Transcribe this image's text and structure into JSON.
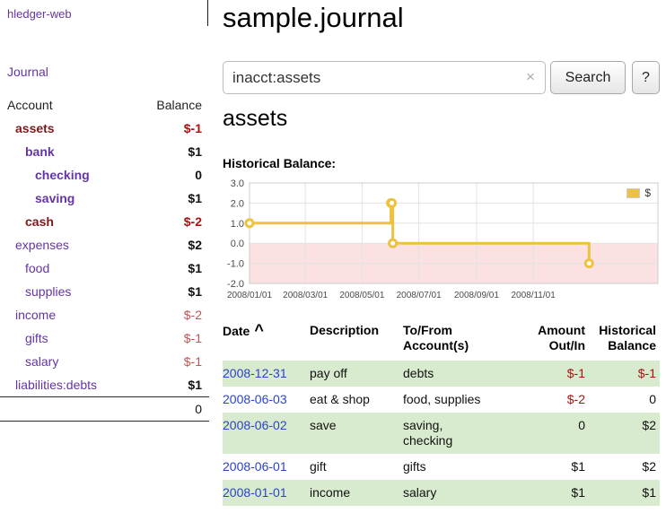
{
  "colors": {
    "purple": "#6434a8",
    "maroon": "#7a1a1a",
    "red": "#aa1111",
    "red-soft": "#bb5555",
    "blue": "#2b43c8",
    "row-green": "#d9ebce",
    "series-yellow": "#edc240",
    "negative-region": "#fbe1e1"
  },
  "sidebar": {
    "brand": "hledger-web",
    "journal_link": "Journal",
    "accounts": {
      "header": {
        "account": "Account",
        "balance": "Balance"
      },
      "rows": [
        {
          "name": "assets",
          "balance": "$-1"
        },
        {
          "name": "bank",
          "balance": "$1"
        },
        {
          "name": "checking",
          "balance": "0"
        },
        {
          "name": "saving",
          "balance": "$1"
        },
        {
          "name": "cash",
          "balance": "$-2"
        },
        {
          "name": "expenses",
          "balance": "$2"
        },
        {
          "name": "food",
          "balance": "$1"
        },
        {
          "name": "supplies",
          "balance": "$1"
        },
        {
          "name": "income",
          "balance": "$-2"
        },
        {
          "name": "gifts",
          "balance": "$-1"
        },
        {
          "name": "salary",
          "balance": "$-1"
        },
        {
          "name": "liabilities:debts",
          "balance": "$1"
        }
      ],
      "total": "0"
    }
  },
  "main": {
    "title": "sample.journal",
    "search": {
      "value": "inacct:assets",
      "clear_icon": "×",
      "search_button": "Search",
      "help_button": "?"
    },
    "account_heading": "assets",
    "chart_heading": "Historical Balance:"
  },
  "chart_data": {
    "type": "line",
    "step": true,
    "title": "Historical Balance:",
    "legend": {
      "label": "$",
      "position": "top-right"
    },
    "grid": true,
    "x_domain": [
      "2008-01-01",
      "2009-03-15"
    ],
    "y_domain": [
      -2,
      3
    ],
    "y_ticks": [
      3.0,
      2.0,
      1.0,
      0.0,
      -1.0,
      -2.0
    ],
    "x_ticks": [
      {
        "date": "2008-01-01",
        "label": "2008/01/01"
      },
      {
        "date": "2008-03-01",
        "label": "2008/03/01"
      },
      {
        "date": "2008-05-01",
        "label": "2008/05/01"
      },
      {
        "date": "2008-07-01",
        "label": "2008/07/01"
      },
      {
        "date": "2008-09-01",
        "label": "2008/09/01"
      },
      {
        "date": "2008-11-01",
        "label": "2008/11/01"
      }
    ],
    "series": [
      {
        "name": "$",
        "color": "#edc240",
        "points": [
          {
            "x": "2008-01-01",
            "y": 1
          },
          {
            "x": "2008-06-01",
            "y": 2
          },
          {
            "x": "2008-06-02",
            "y": 2
          },
          {
            "x": "2008-06-03",
            "y": 0
          },
          {
            "x": "2008-12-31",
            "y": -1
          }
        ]
      }
    ],
    "negative_region_fill": "#fbe1e1"
  },
  "register": {
    "headers": {
      "date": "Date",
      "sort_caret": "^",
      "description": "Description",
      "accounts": "To/From Account(s)",
      "amount": "Amount Out/In",
      "balance": "Historical Balance"
    },
    "rows": [
      {
        "date": "2008-12-31",
        "description": "pay off",
        "accounts": "debts",
        "amount": "$-1",
        "balance": "$-1"
      },
      {
        "date": "2008-06-03",
        "description": "eat & shop",
        "accounts": "food, supplies",
        "amount": "$-2",
        "balance": "0"
      },
      {
        "date": "2008-06-02",
        "description": "save",
        "accounts": "saving,\nchecking",
        "amount": "0",
        "balance": "$2"
      },
      {
        "date": "2008-06-01",
        "description": "gift",
        "accounts": "gifts",
        "amount": "$1",
        "balance": "$2"
      },
      {
        "date": "2008-01-01",
        "description": "income",
        "accounts": "salary",
        "amount": "$1",
        "balance": "$1"
      }
    ]
  }
}
